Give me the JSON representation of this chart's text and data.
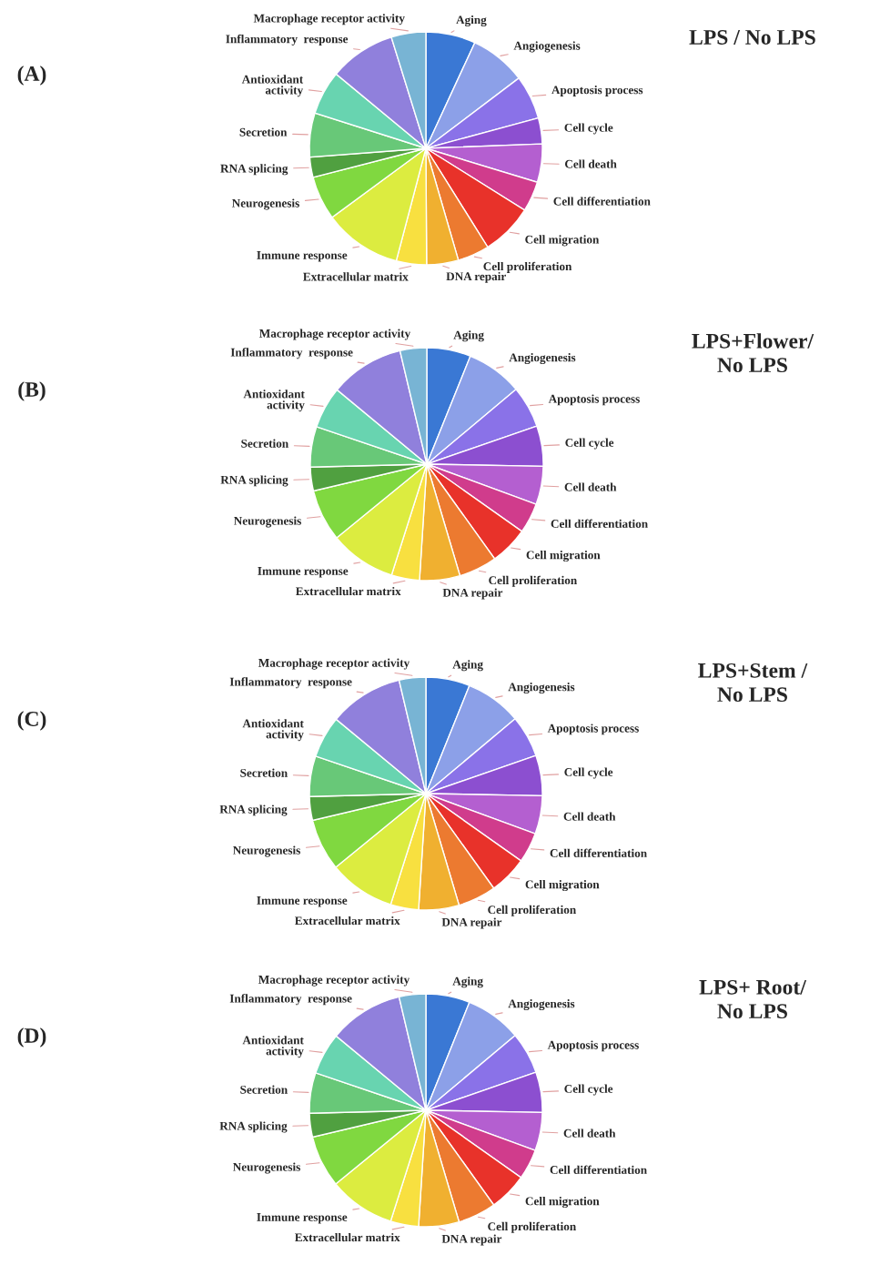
{
  "chart_data": [
    {
      "type": "pie",
      "title": "LPS / No LPS",
      "annotations": [
        "(A)"
      ],
      "categories": [
        "Aging",
        "Angiogenesis",
        "Apoptosis process",
        "Cell cycle",
        "Cell death",
        "Cell differentiation",
        "Cell migration",
        "Cell proliferation",
        "DNA repair",
        "Extracellular matrix",
        "Immune response",
        "Neurogenesis",
        "RNA splicing",
        "Secretion",
        "Antioxidant\nactivity",
        "Inflammatory  response",
        "Macrophage receptor activity"
      ],
      "values": [
        6.9,
        7.8,
        6.1,
        3.6,
        5.3,
        4.2,
        7.2,
        4.4,
        4.4,
        4.2,
        10.8,
        6.1,
        2.8,
        6.1,
        6.1,
        9.2,
        4.8
      ],
      "colors": [
        "#3a78d4",
        "#8ca0e8",
        "#8a72e8",
        "#8c4fd0",
        "#b45fd0",
        "#d03c8c",
        "#e8322a",
        "#ec7a30",
        "#f0b030",
        "#f8e040",
        "#dcec40",
        "#80d840",
        "#50a040",
        "#68c878",
        "#68d4b0",
        "#9080dc",
        "#78b4d4"
      ]
    },
    {
      "type": "pie",
      "title": "LPS+Flower/\nNo LPS",
      "annotations": [
        "(B)"
      ],
      "categories": [
        "Aging",
        "Angiogenesis",
        "Apoptosis process",
        "Cell cycle",
        "Cell death",
        "Cell differentiation",
        "Cell migration",
        "Cell proliferation",
        "DNA repair",
        "Extracellular matrix",
        "Immune response",
        "Neurogenesis",
        "RNA splicing",
        "Secretion",
        "Antioxidant\nactivity",
        "Inflammatory  response",
        "Macrophage receptor activity"
      ],
      "values": [
        6.1,
        7.8,
        5.8,
        5.6,
        5.3,
        4.2,
        5.3,
        5.3,
        5.6,
        3.9,
        9.2,
        7.2,
        3.3,
        5.6,
        5.8,
        10.3,
        3.7
      ],
      "colors": [
        "#3a78d4",
        "#8ca0e8",
        "#8a72e8",
        "#8c4fd0",
        "#b45fd0",
        "#d03c8c",
        "#e8322a",
        "#ec7a30",
        "#f0b030",
        "#f8e040",
        "#dcec40",
        "#80d840",
        "#50a040",
        "#68c878",
        "#68d4b0",
        "#9080dc",
        "#78b4d4"
      ]
    },
    {
      "type": "pie",
      "title": "LPS+Stem /\nNo LPS",
      "annotations": [
        "(C)"
      ],
      "categories": [
        "Aging",
        "Angiogenesis",
        "Apoptosis process",
        "Cell cycle",
        "Cell death",
        "Cell differentiation",
        "Cell migration",
        "Cell proliferation",
        "DNA repair",
        "Extracellular matrix",
        "Immune response",
        "Neurogenesis",
        "RNA splicing",
        "Secretion",
        "Antioxidant\nactivity",
        "Inflammatory  response",
        "Macrophage receptor activity"
      ],
      "values": [
        6.1,
        7.8,
        5.8,
        5.6,
        5.3,
        4.2,
        5.3,
        5.3,
        5.6,
        3.9,
        9.2,
        7.2,
        3.3,
        5.6,
        5.8,
        10.3,
        3.7
      ],
      "colors": [
        "#3a78d4",
        "#8ca0e8",
        "#8a72e8",
        "#8c4fd0",
        "#b45fd0",
        "#d03c8c",
        "#e8322a",
        "#ec7a30",
        "#f0b030",
        "#f8e040",
        "#dcec40",
        "#80d840",
        "#50a040",
        "#68c878",
        "#68d4b0",
        "#9080dc",
        "#78b4d4"
      ]
    },
    {
      "type": "pie",
      "title": "LPS+ Root/\nNo LPS",
      "annotations": [
        "(D)"
      ],
      "categories": [
        "Aging",
        "Angiogenesis",
        "Apoptosis process",
        "Cell cycle",
        "Cell death",
        "Cell differentiation",
        "Cell migration",
        "Cell proliferation",
        "DNA repair",
        "Extracellular matrix",
        "Immune response",
        "Neurogenesis",
        "RNA splicing",
        "Secretion",
        "Antioxidant\nactivity",
        "Inflammatory  response",
        "Macrophage receptor activity"
      ],
      "values": [
        6.1,
        7.8,
        5.8,
        5.6,
        5.3,
        4.2,
        5.3,
        5.3,
        5.6,
        3.9,
        9.2,
        7.2,
        3.3,
        5.6,
        5.8,
        10.3,
        3.7
      ],
      "colors": [
        "#3a78d4",
        "#8ca0e8",
        "#8a72e8",
        "#8c4fd0",
        "#b45fd0",
        "#d03c8c",
        "#e8322a",
        "#ec7a30",
        "#f0b030",
        "#f8e040",
        "#dcec40",
        "#80d840",
        "#50a040",
        "#68c878",
        "#68d4b0",
        "#9080dc",
        "#78b4d4"
      ]
    }
  ]
}
